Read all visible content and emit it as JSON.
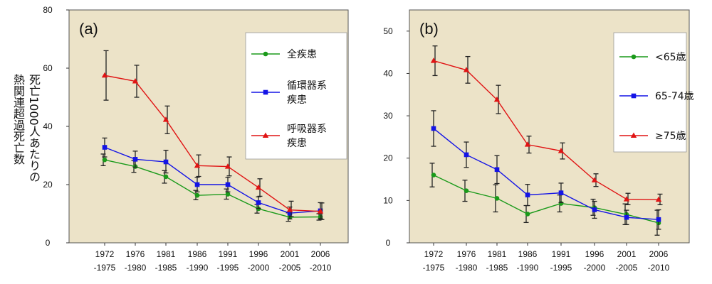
{
  "y_axis_label_lines": [
    "死亡1000人あたりの",
    "熱関連超過死亡数"
  ],
  "colors": {
    "plot_bg": "#ece3c8",
    "legend_bg": "#ffffff",
    "error_bar": "#222222",
    "series_green": "#1a9a1a",
    "series_blue": "#1414e6",
    "series_red": "#e01414"
  },
  "chart_data": [
    {
      "type": "line",
      "panel_label": "(a)",
      "x_tick_labels": [
        [
          "1972",
          "-1975"
        ],
        [
          "1976",
          "-1980"
        ],
        [
          "1981",
          "-1985"
        ],
        [
          "1986",
          "-1990"
        ],
        [
          "1991",
          "-1995"
        ],
        [
          "1996",
          "-2000"
        ],
        [
          "2001",
          "-2005"
        ],
        [
          "2006",
          "-2010"
        ]
      ],
      "ylim": [
        0,
        80
      ],
      "y_ticks": [
        0,
        20,
        40,
        60,
        80
      ],
      "grid": false,
      "legend_position": "top-right",
      "series": [
        {
          "name": "全疾患",
          "marker": "circle",
          "color": "#1a9a1a",
          "values": [
            28.5,
            26.2,
            22.7,
            16.3,
            16.7,
            11.7,
            8.8,
            8.9
          ],
          "err_low": [
            26.5,
            24.2,
            20.5,
            14.8,
            15.0,
            10.2,
            7.4,
            7.8
          ],
          "err_high": [
            30.5,
            28.3,
            24.8,
            18.0,
            18.5,
            13.2,
            10.3,
            10.0
          ]
        },
        {
          "name": "循環器系疾患",
          "legend_lines": [
            "循環器系",
            "疾患"
          ],
          "marker": "square",
          "color": "#1414e6",
          "values": [
            32.8,
            28.7,
            27.8,
            20.0,
            20.0,
            13.8,
            10.2,
            11.0
          ],
          "err_low": [
            29.5,
            26.0,
            24.0,
            17.5,
            17.5,
            11.8,
            8.2,
            8.3
          ],
          "err_high": [
            36.0,
            31.5,
            31.8,
            22.5,
            22.5,
            15.8,
            12.3,
            13.8
          ]
        },
        {
          "name": "呼吸器系疾患",
          "legend_lines": [
            "呼吸器系",
            "疾患"
          ],
          "marker": "triangle",
          "color": "#e01414",
          "values": [
            57.5,
            55.5,
            42.3,
            26.5,
            26.2,
            19.0,
            11.3,
            10.8
          ],
          "err_low": [
            49.0,
            50.0,
            37.5,
            22.8,
            23.0,
            16.0,
            9.0,
            8.0
          ],
          "err_high": [
            66.0,
            61.0,
            47.0,
            30.2,
            29.5,
            22.0,
            14.3,
            13.7
          ]
        }
      ]
    },
    {
      "type": "line",
      "panel_label": "(b)",
      "x_tick_labels": [
        [
          "1972",
          "-1975"
        ],
        [
          "1976",
          "-1980"
        ],
        [
          "1981",
          "-1985"
        ],
        [
          "1986",
          "-1990"
        ],
        [
          "1991",
          "-1995"
        ],
        [
          "1996",
          "-2000"
        ],
        [
          "2001",
          "-2005"
        ],
        [
          "2006",
          "-2010"
        ]
      ],
      "ylim": [
        0,
        55
      ],
      "y_ticks": [
        0,
        10,
        20,
        30,
        40,
        50
      ],
      "grid": false,
      "legend_position": "top-right",
      "series": [
        {
          "name": "<65歳",
          "marker": "circle",
          "color": "#1a9a1a",
          "values": [
            16.0,
            12.3,
            10.5,
            6.8,
            9.3,
            8.3,
            6.7,
            4.7
          ],
          "err_low": [
            13.2,
            9.8,
            7.3,
            4.8,
            7.3,
            6.5,
            4.3,
            1.8
          ],
          "err_high": [
            18.8,
            14.8,
            13.7,
            8.8,
            11.3,
            10.3,
            9.2,
            7.7
          ]
        },
        {
          "name": "65-74歳",
          "marker": "square",
          "color": "#1414e6",
          "values": [
            27.0,
            20.8,
            17.3,
            11.3,
            11.8,
            7.8,
            6.0,
            5.5
          ],
          "err_low": [
            22.8,
            17.8,
            14.0,
            8.8,
            9.5,
            5.8,
            4.3,
            3.2
          ],
          "err_high": [
            31.2,
            23.8,
            20.6,
            13.8,
            14.1,
            9.8,
            7.7,
            7.8
          ]
        },
        {
          "name": "≥75歳",
          "marker": "triangle",
          "color": "#e01414",
          "values": [
            43.0,
            40.8,
            33.8,
            23.2,
            21.7,
            14.8,
            10.3,
            10.2
          ],
          "err_low": [
            39.5,
            37.7,
            30.5,
            21.2,
            19.8,
            13.3,
            9.0,
            9.0
          ],
          "err_high": [
            46.5,
            44.0,
            37.2,
            25.2,
            23.6,
            16.3,
            11.7,
            11.5
          ]
        }
      ]
    }
  ]
}
